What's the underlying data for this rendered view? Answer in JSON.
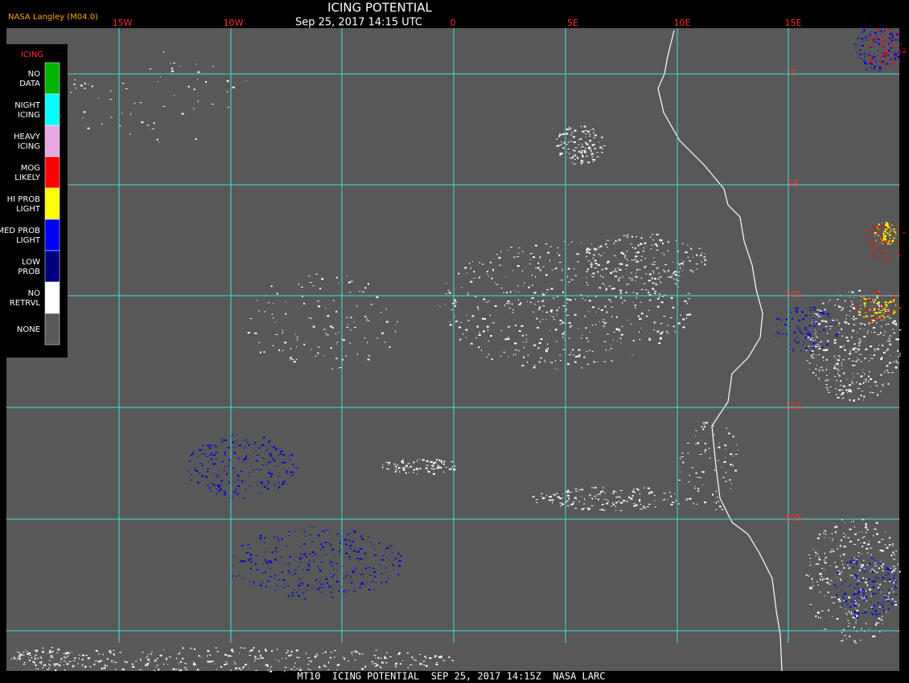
{
  "header": {
    "source": "NASA Langley (M04.0)",
    "title": "ICING POTENTIAL",
    "timestamp": "Sep 25, 2017 14:15 UTC"
  },
  "longitude_labels": [
    "15W",
    "10W",
    "0",
    "5E",
    "10E",
    "15E"
  ],
  "latitude_labels": [
    "0",
    "5S",
    "10S",
    "15S",
    "20S"
  ],
  "legend": {
    "title": "ICING",
    "items": [
      {
        "label": "NO DATA",
        "color": "#00b400"
      },
      {
        "label": "NIGHT ICING",
        "color": "#00ffff"
      },
      {
        "label": "HEAVY ICING",
        "color": "#e6a8e0"
      },
      {
        "label": "MOG LIKELY",
        "color": "#ff0000"
      },
      {
        "label": "HI PROB LIGHT",
        "color": "#ffff00"
      },
      {
        "label": "MED PROB LIGHT",
        "color": "#0000ff"
      },
      {
        "label": "LOW PROB",
        "color": "#000080"
      },
      {
        "label": "NO RETRVL",
        "color": "#ffffff"
      },
      {
        "label": "NONE",
        "color": "#585858"
      }
    ]
  },
  "footer": "MT10  ICING POTENTIAL  SEP 25, 2017 14:15Z  NASA LARC"
}
